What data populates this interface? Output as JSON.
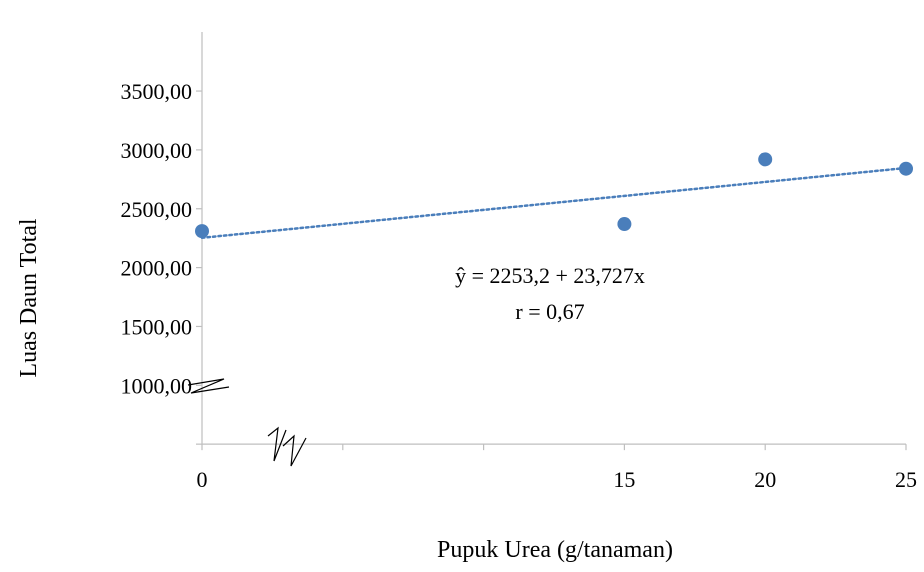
{
  "chart_data": {
    "type": "scatter",
    "xlabel": "Pupuk Urea (g/tanaman)",
    "ylabel": "Luas Daun Total",
    "x_ticks": [
      0,
      15,
      20,
      25
    ],
    "x_tick_labels": [
      "0",
      "15",
      "20",
      "25"
    ],
    "y_ticks": [
      1000,
      1500,
      2000,
      2500,
      3000,
      3500
    ],
    "y_tick_labels": [
      "1000,00",
      "1500,00",
      "2000,00",
      "2500,00",
      "3000,00",
      "3500,00"
    ],
    "xlim": [
      0,
      25
    ],
    "ylim": [
      500,
      3500
    ],
    "axis_breaks": [
      "x",
      "y"
    ],
    "grid": false,
    "points": [
      {
        "x": 0,
        "y": 2310
      },
      {
        "x": 15,
        "y": 2370
      },
      {
        "x": 20,
        "y": 2920
      },
      {
        "x": 25,
        "y": 2840
      }
    ],
    "trendline": {
      "type": "linear",
      "intercept": 2253.2,
      "slope": 23.727,
      "style": "dotted"
    },
    "annotation": {
      "equation": "ŷ = 2253,2 + 23,727x",
      "r_value": "r = 0,67"
    },
    "colors": {
      "points": "#4a7ebb",
      "trendline": "#4a7ebb",
      "axis": "#bfbfbf"
    }
  }
}
